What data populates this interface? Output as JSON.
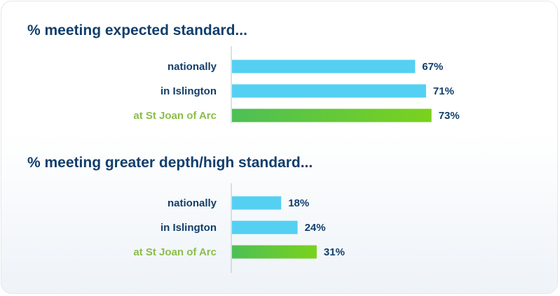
{
  "colors": {
    "bar_regular": "#54d0f2",
    "bar_highlight_start": "#4dbf56",
    "bar_highlight_end": "#7ad21d",
    "label_regular": "#123e6b",
    "label_highlight": "#8cbd4b",
    "axis": "#b9c3cc"
  },
  "chart_data": [
    {
      "type": "bar",
      "orientation": "horizontal",
      "title": "% meeting expected standard...",
      "categories": [
        "nationally",
        "in Islington",
        "at St Joan of Arc"
      ],
      "values": [
        67,
        71,
        73
      ],
      "value_labels": [
        "67%",
        "71%",
        "73%"
      ],
      "highlight": [
        false,
        false,
        true
      ],
      "xlim": [
        0,
        100
      ],
      "grid": false
    },
    {
      "type": "bar",
      "orientation": "horizontal",
      "title": "% meeting greater depth/high standard...",
      "categories": [
        "nationally",
        "in Islington",
        "at St Joan of Arc"
      ],
      "values": [
        18,
        24,
        31
      ],
      "value_labels": [
        "18%",
        "24%",
        "31%"
      ],
      "highlight": [
        false,
        false,
        true
      ],
      "xlim": [
        0,
        100
      ],
      "grid": false
    }
  ]
}
